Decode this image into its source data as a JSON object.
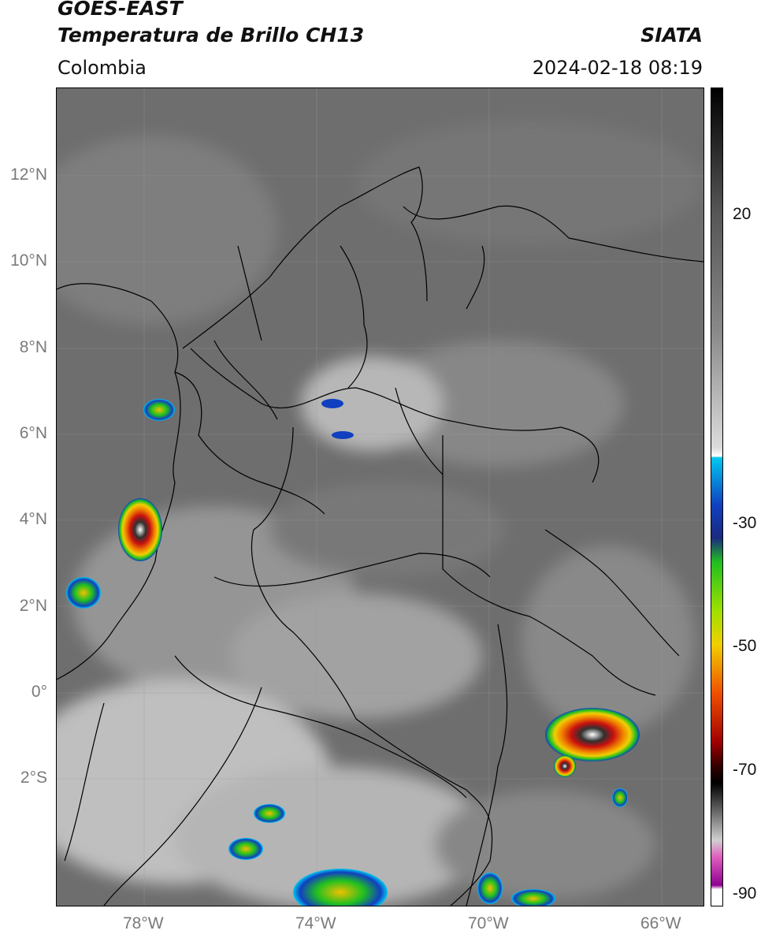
{
  "header": {
    "title_line1": "GOES-EAST",
    "title_line2": "Temperatura de Brillo CH13",
    "region": "Colombia",
    "source": "SIATA",
    "timestamp": "2024-02-18 08:19"
  },
  "axes": {
    "lat_labels": [
      "12°N",
      "10°N",
      "8°N",
      "6°N",
      "4°N",
      "2°N",
      "0°",
      "2°S"
    ],
    "lon_labels": [
      "78°W",
      "74°W",
      "70°W",
      "66°W"
    ]
  },
  "colorbar": {
    "labels": [
      "20",
      "-30",
      "-50",
      "-70",
      "-90"
    ]
  },
  "colors": {
    "warm_cloud": "#d0d0d0",
    "cold_top_red": "#c81010",
    "cold_top_yellow": "#f0d000",
    "cold_top_green": "#20c020",
    "cold_top_blue": "#1040c0",
    "border": "#000000"
  }
}
